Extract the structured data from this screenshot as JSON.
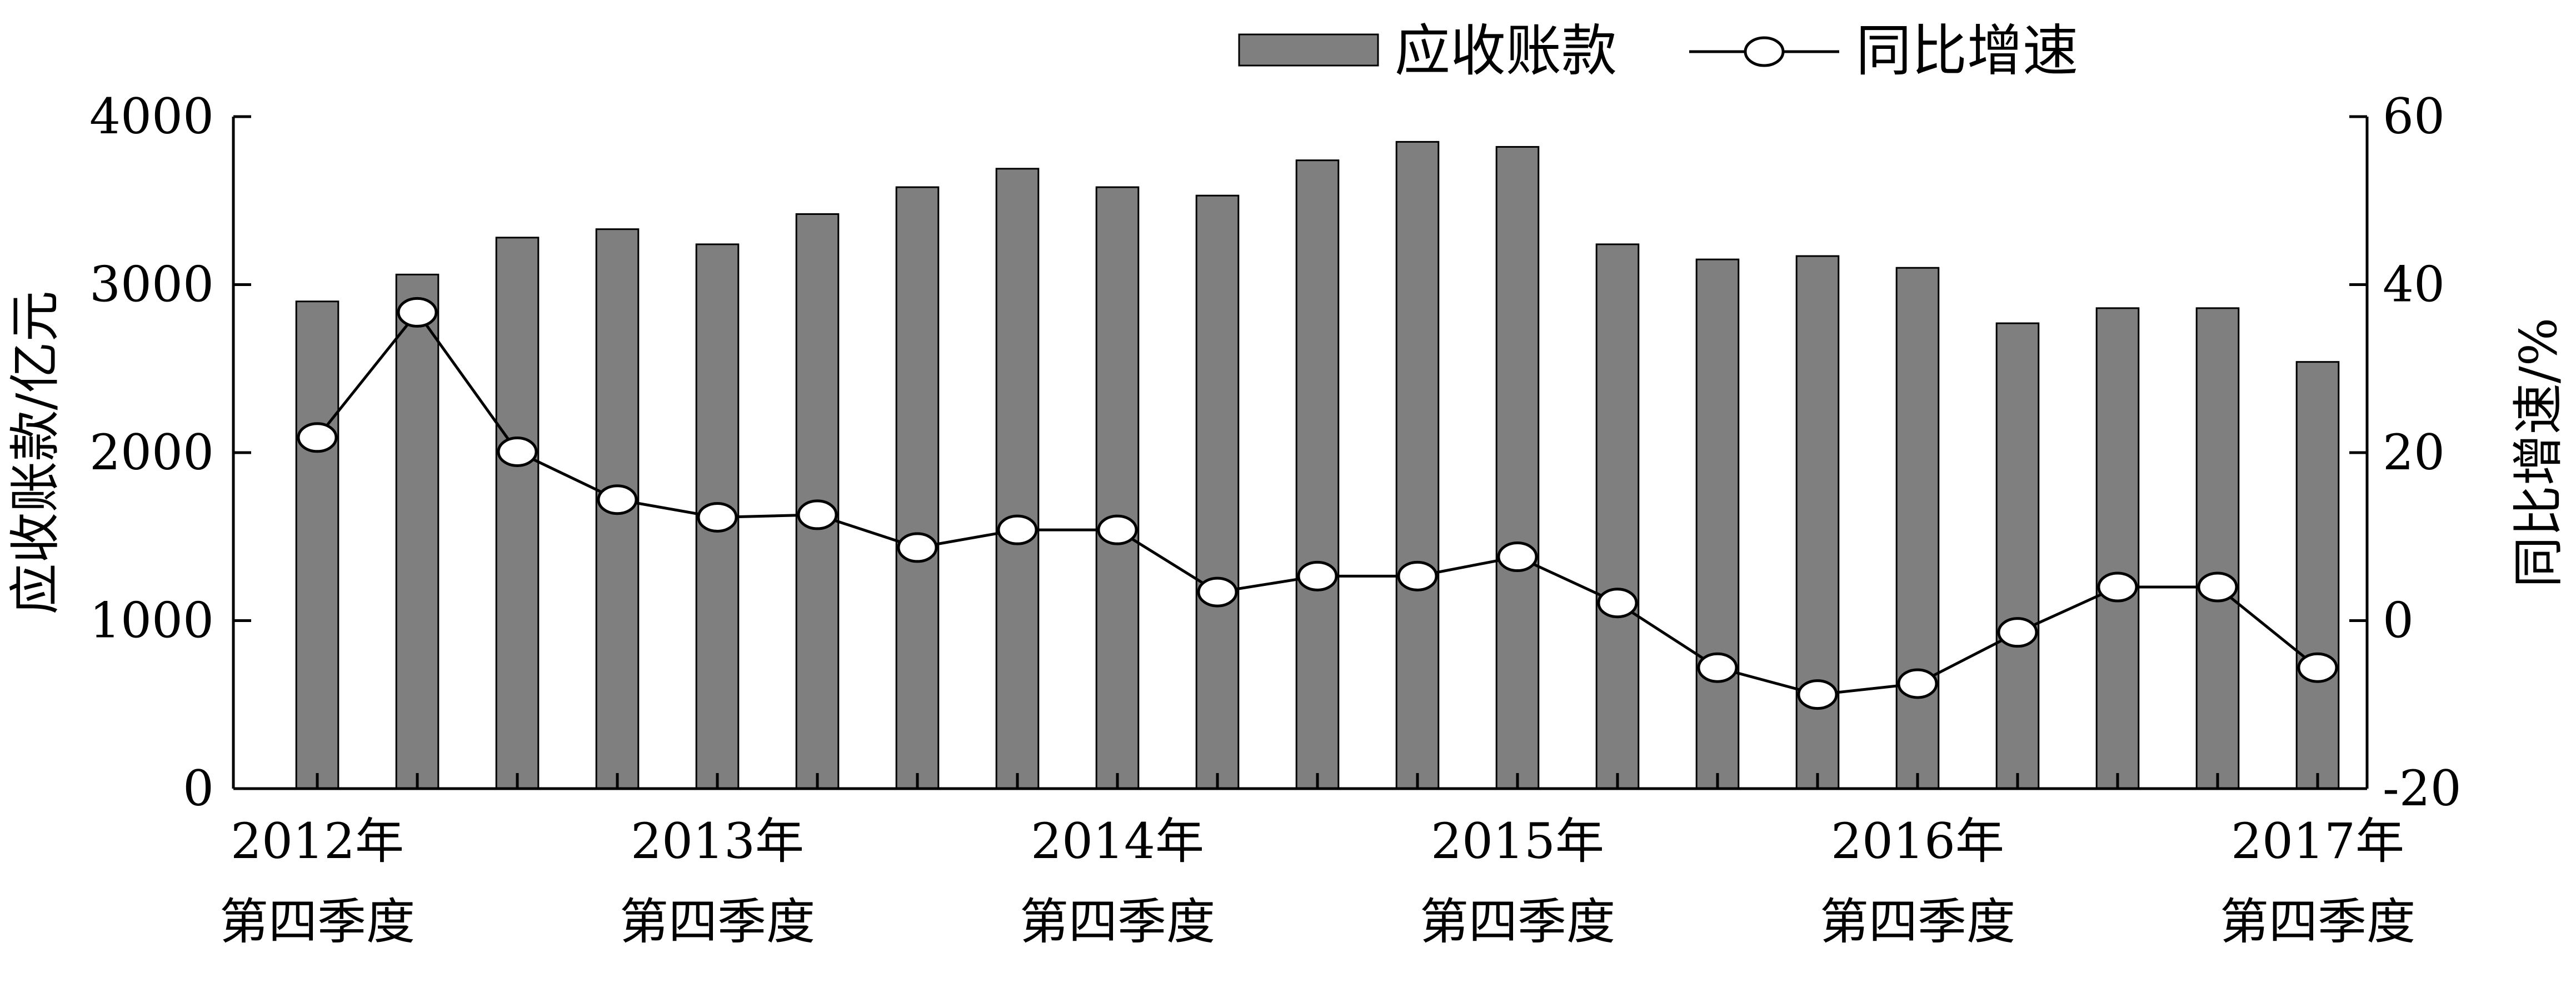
{
  "chart_data": {
    "type": "bar",
    "categories": [
      "2012年\n第四季度",
      "",
      "",
      "",
      "2013年\n第四季度",
      "",
      "",
      "",
      "2014年\n第四季度",
      "",
      "",
      "",
      "2015年\n第四季度",
      "",
      "",
      "",
      "2016年\n第四季度",
      "",
      "",
      "",
      "2017年\n第四季度"
    ],
    "x_tick_labels": [
      {
        "index": 0,
        "year": "2012年",
        "quarter": "第四季度"
      },
      {
        "index": 4,
        "year": "2013年",
        "quarter": "第四季度"
      },
      {
        "index": 8,
        "year": "2014年",
        "quarter": "第四季度"
      },
      {
        "index": 12,
        "year": "2015年",
        "quarter": "第四季度"
      },
      {
        "index": 16,
        "year": "2016年",
        "quarter": "第四季度"
      },
      {
        "index": 20,
        "year": "2017年",
        "quarter": "第四季度"
      }
    ],
    "series": [
      {
        "name": "应收账款",
        "type": "bar",
        "axis": "left",
        "values": [
          2900,
          3060,
          3280,
          3330,
          3240,
          3420,
          3580,
          3690,
          3580,
          3530,
          3740,
          3850,
          3820,
          3240,
          3150,
          3170,
          3100,
          2770,
          2860,
          2860,
          2540
        ]
      },
      {
        "name": "同比增速",
        "type": "line",
        "axis": "right",
        "values": [
          21.8,
          36.7,
          20.1,
          14.4,
          12.3,
          12.6,
          8.7,
          10.8,
          10.8,
          3.4,
          5.3,
          5.3,
          7.6,
          2.1,
          -5.6,
          -8.8,
          -7.5,
          -1.4,
          4.0,
          4.0,
          -5.6
        ]
      }
    ],
    "ylabel": "应收账款/亿元",
    "y2label": "同比增速/%",
    "ylim": [
      0,
      4000
    ],
    "y_ticks": [
      0,
      1000,
      2000,
      3000,
      4000
    ],
    "y2lim": [
      -20,
      60
    ],
    "y2_ticks": [
      -20,
      0,
      20,
      40,
      60
    ],
    "grid": false,
    "legend_position": "top-center",
    "colors": {
      "bar": "#7f7f7f",
      "line": "#000000",
      "marker_fill": "#ffffff"
    }
  }
}
